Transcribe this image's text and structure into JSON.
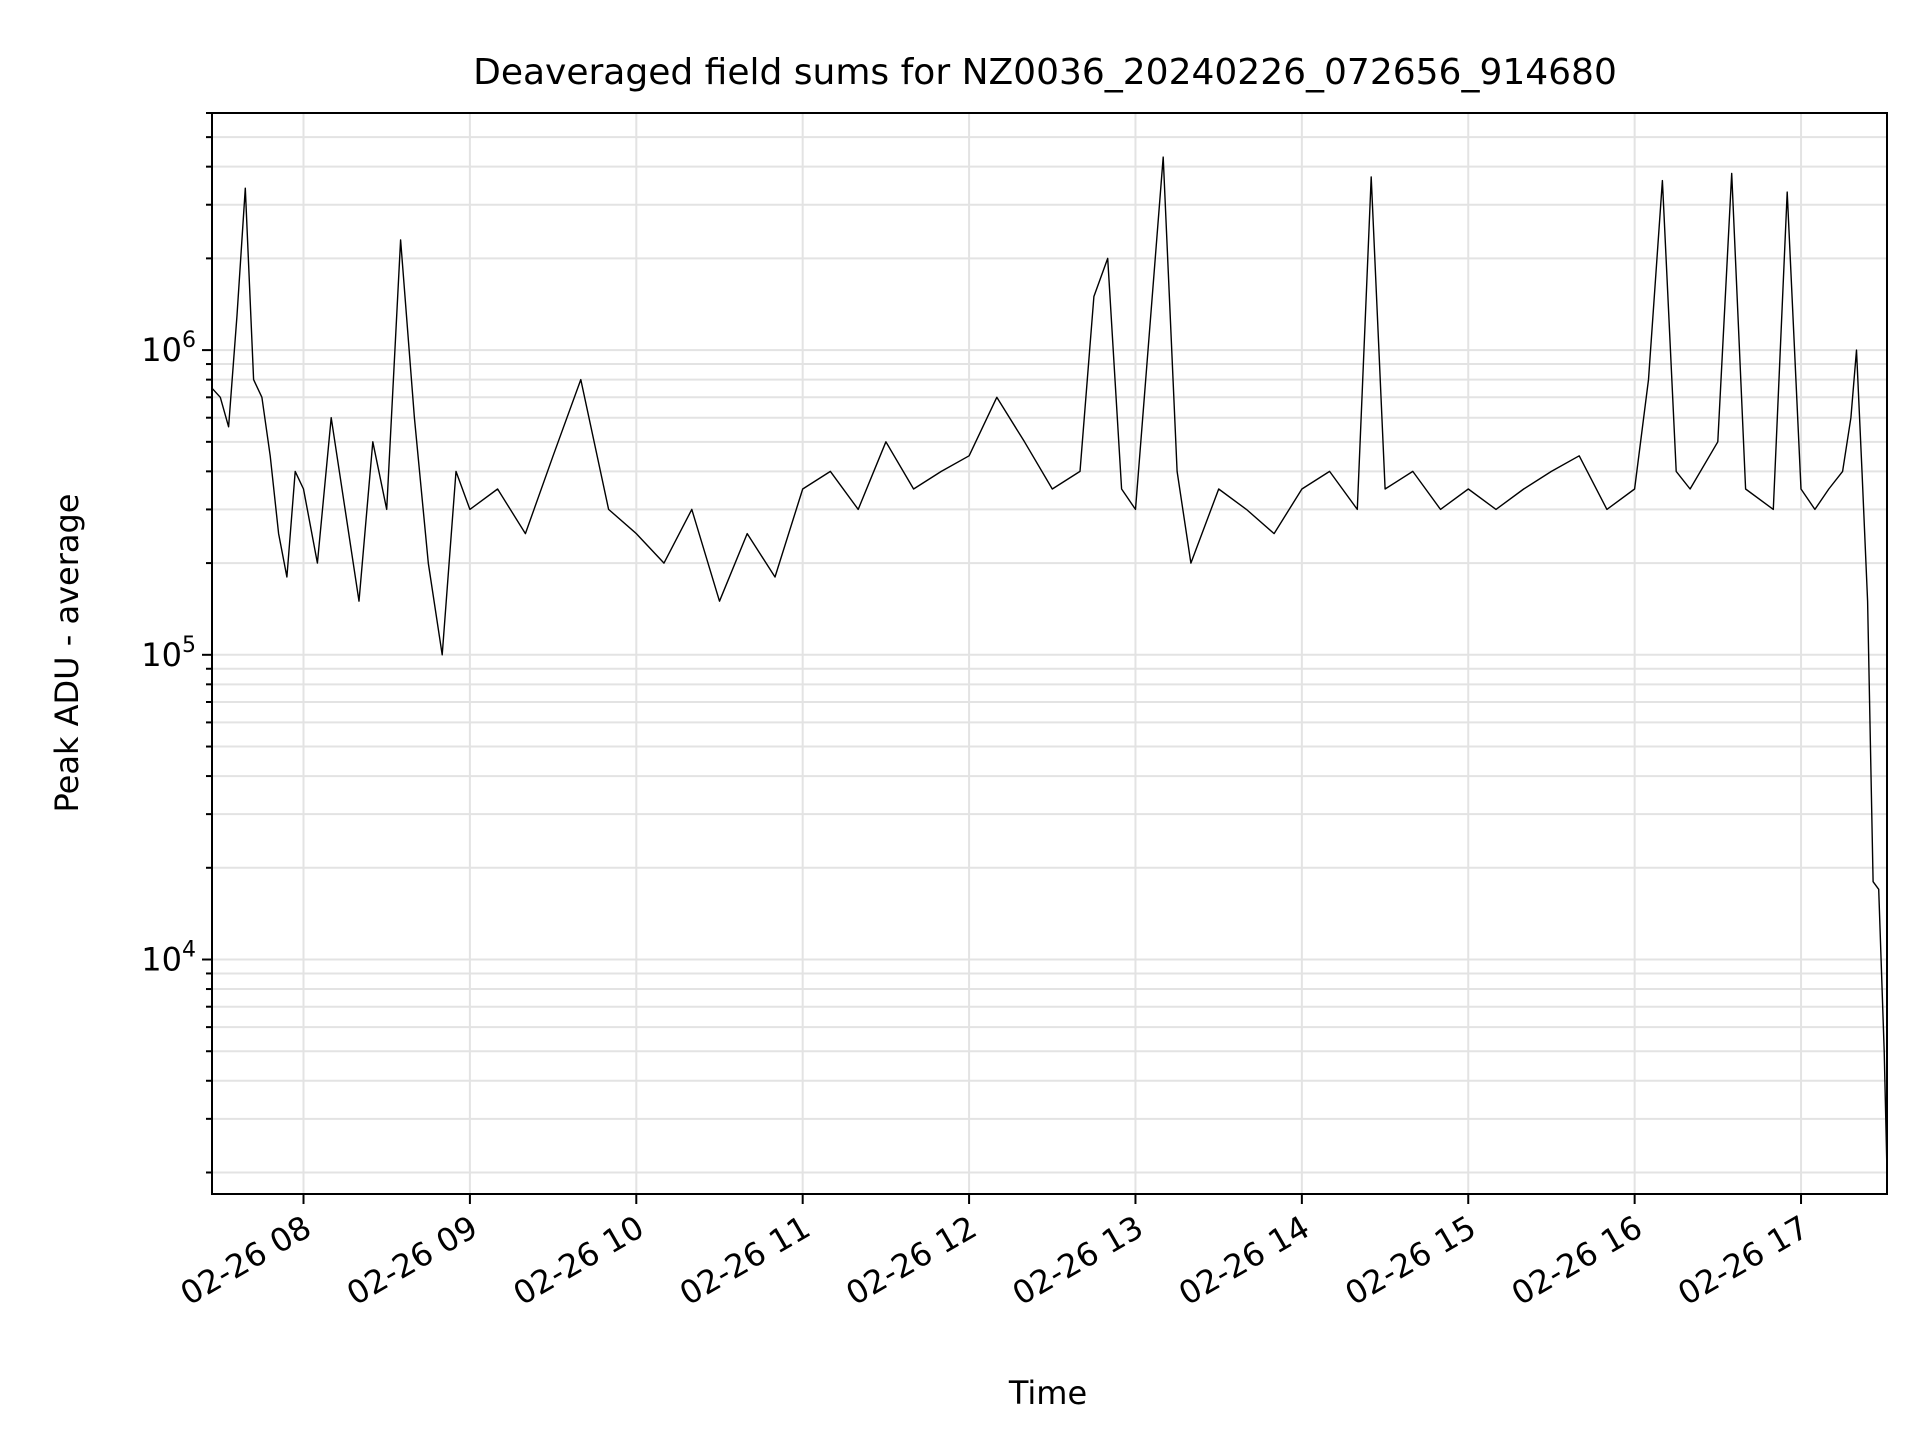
{
  "chart_data": {
    "type": "line",
    "title": "Deaveraged field sums for NZ0036_20240226_072656_914680",
    "xlabel": "Time",
    "ylabel": "Peak ADU - average",
    "y_scale": "log",
    "xlim": [
      "2024-02-26 07:27",
      "2024-02-26 17:31"
    ],
    "ylim": [
      1700,
      6000000
    ],
    "grid": true,
    "line_color": "#000000",
    "grid_color": "#e3e3e3",
    "x_ticks": [
      {
        "value": "2024-02-26 08:00",
        "label": "02-26 08"
      },
      {
        "value": "2024-02-26 09:00",
        "label": "02-26 09"
      },
      {
        "value": "2024-02-26 10:00",
        "label": "02-26 10"
      },
      {
        "value": "2024-02-26 11:00",
        "label": "02-26 11"
      },
      {
        "value": "2024-02-26 12:00",
        "label": "02-26 12"
      },
      {
        "value": "2024-02-26 13:00",
        "label": "02-26 13"
      },
      {
        "value": "2024-02-26 14:00",
        "label": "02-26 14"
      },
      {
        "value": "2024-02-26 15:00",
        "label": "02-26 15"
      },
      {
        "value": "2024-02-26 16:00",
        "label": "02-26 16"
      },
      {
        "value": "2024-02-26 17:00",
        "label": "02-26 17"
      }
    ],
    "y_ticks": [
      {
        "value": 10000,
        "base": "10",
        "exp": "4"
      },
      {
        "value": 100000,
        "base": "10",
        "exp": "5"
      },
      {
        "value": 1000000,
        "base": "10",
        "exp": "6"
      }
    ],
    "series": [
      {
        "x": [
          "2024-02-26 07:27",
          "2024-02-26 07:30",
          "2024-02-26 07:33",
          "2024-02-26 07:36",
          "2024-02-26 07:39",
          "2024-02-26 07:42",
          "2024-02-26 07:45",
          "2024-02-26 07:48",
          "2024-02-26 07:51",
          "2024-02-26 07:54",
          "2024-02-26 07:57",
          "2024-02-26 08:00",
          "2024-02-26 08:05",
          "2024-02-26 08:10",
          "2024-02-26 08:15",
          "2024-02-26 08:20",
          "2024-02-26 08:25",
          "2024-02-26 08:30",
          "2024-02-26 08:35",
          "2024-02-26 08:40",
          "2024-02-26 08:45",
          "2024-02-26 08:50",
          "2024-02-26 08:55",
          "2024-02-26 09:00",
          "2024-02-26 09:10",
          "2024-02-26 09:20",
          "2024-02-26 09:30",
          "2024-02-26 09:40",
          "2024-02-26 09:50",
          "2024-02-26 10:00",
          "2024-02-26 10:10",
          "2024-02-26 10:20",
          "2024-02-26 10:30",
          "2024-02-26 10:40",
          "2024-02-26 10:50",
          "2024-02-26 11:00",
          "2024-02-26 11:10",
          "2024-02-26 11:20",
          "2024-02-26 11:30",
          "2024-02-26 11:40",
          "2024-02-26 11:50",
          "2024-02-26 12:00",
          "2024-02-26 12:10",
          "2024-02-26 12:20",
          "2024-02-26 12:30",
          "2024-02-26 12:40",
          "2024-02-26 12:45",
          "2024-02-26 12:50",
          "2024-02-26 12:55",
          "2024-02-26 13:00",
          "2024-02-26 13:10",
          "2024-02-26 13:15",
          "2024-02-26 13:20",
          "2024-02-26 13:30",
          "2024-02-26 13:40",
          "2024-02-26 13:50",
          "2024-02-26 14:00",
          "2024-02-26 14:10",
          "2024-02-26 14:20",
          "2024-02-26 14:25",
          "2024-02-26 14:30",
          "2024-02-26 14:40",
          "2024-02-26 14:50",
          "2024-02-26 15:00",
          "2024-02-26 15:10",
          "2024-02-26 15:20",
          "2024-02-26 15:30",
          "2024-02-26 15:40",
          "2024-02-26 15:50",
          "2024-02-26 16:00",
          "2024-02-26 16:05",
          "2024-02-26 16:10",
          "2024-02-26 16:15",
          "2024-02-26 16:20",
          "2024-02-26 16:30",
          "2024-02-26 16:35",
          "2024-02-26 16:40",
          "2024-02-26 16:50",
          "2024-02-26 16:55",
          "2024-02-26 17:00",
          "2024-02-26 17:05",
          "2024-02-26 17:10",
          "2024-02-26 17:15",
          "2024-02-26 17:18",
          "2024-02-26 17:20",
          "2024-02-26 17:22",
          "2024-02-26 17:24",
          "2024-02-26 17:26",
          "2024-02-26 17:28",
          "2024-02-26 17:30",
          "2024-02-26 17:31"
        ],
        "y": [
          750000,
          700000,
          560000,
          1300000,
          3400000,
          800000,
          700000,
          450000,
          250000,
          180000,
          400000,
          350000,
          200000,
          600000,
          300000,
          150000,
          500000,
          300000,
          2300000,
          600000,
          200000,
          100000,
          400000,
          300000,
          350000,
          250000,
          450000,
          800000,
          300000,
          250000,
          200000,
          300000,
          150000,
          250000,
          180000,
          350000,
          400000,
          300000,
          500000,
          350000,
          400000,
          450000,
          700000,
          500000,
          350000,
          400000,
          1500000,
          2000000,
          350000,
          300000,
          4300000,
          400000,
          200000,
          350000,
          300000,
          250000,
          350000,
          400000,
          300000,
          3700000,
          350000,
          400000,
          300000,
          350000,
          300000,
          350000,
          400000,
          450000,
          300000,
          350000,
          800000,
          3600000,
          400000,
          350000,
          500000,
          3800000,
          350000,
          300000,
          3300000,
          350000,
          300000,
          350000,
          400000,
          600000,
          1000000,
          400000,
          150000,
          18000,
          17000,
          5000,
          2000
        ]
      }
    ]
  }
}
